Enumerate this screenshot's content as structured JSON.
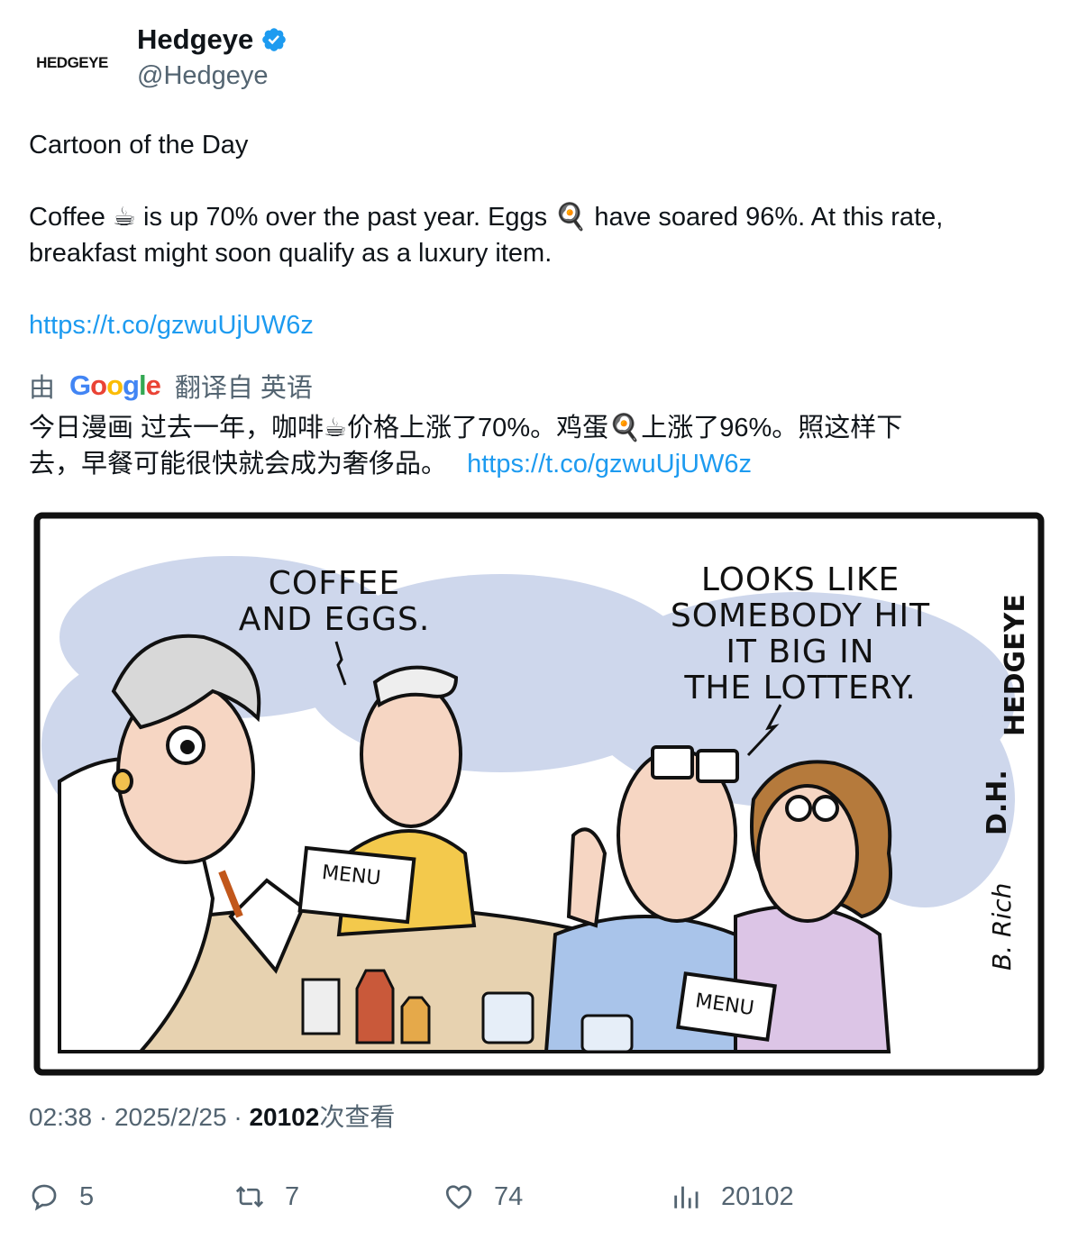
{
  "author": {
    "avatar_text": "HEDGEYE",
    "display_name": "Hedgeye",
    "handle": "@Hedgeye"
  },
  "tweet": {
    "title": "Cartoon of the Day",
    "body_line1": "Coffee ☕ is up 70% over the past year. Eggs 🍳 have soared 96%. At this rate,",
    "body_line2": "breakfast might soon qualify as a luxury item.",
    "link": "https://t.co/gzwuUjUW6z"
  },
  "translation": {
    "prefix": "由",
    "provider": "Google",
    "suffix": "翻译自 英语",
    "text_line1": "今日漫画 过去一年，咖啡☕价格上涨了70%。鸡蛋🍳上涨了96%。照这样下",
    "text_line2": "去，早餐可能很快就会成为奢侈品。",
    "link": "https://t.co/gzwuUjUW6z"
  },
  "cartoon": {
    "bubble_left_1": "COFFEE",
    "bubble_left_2": "AND EGGS.",
    "bubble_right_1": "LOOKS LIKE",
    "bubble_right_2": "SOMEBODY HIT",
    "bubble_right_3": "IT BIG IN",
    "bubble_right_4": "THE LOTTERY.",
    "menu_label_1": "MENU",
    "menu_label_2": "MENU",
    "signature_brand": "HEDGEYE",
    "signature_initials": "D.H.",
    "signature_artist": "B. Rich"
  },
  "meta": {
    "time": "02:38",
    "date": "2025/2/25",
    "views": "20102",
    "views_suffix": "次查看"
  },
  "actions": {
    "replies": "5",
    "retweets": "7",
    "likes": "74",
    "views": "20102"
  },
  "colors": {
    "link": "#1d9bf0",
    "secondary_text": "#536471",
    "verified": "#1d9bf0"
  },
  "icons": [
    "verified-badge-icon",
    "reply-icon",
    "retweet-icon",
    "like-icon",
    "views-icon"
  ]
}
